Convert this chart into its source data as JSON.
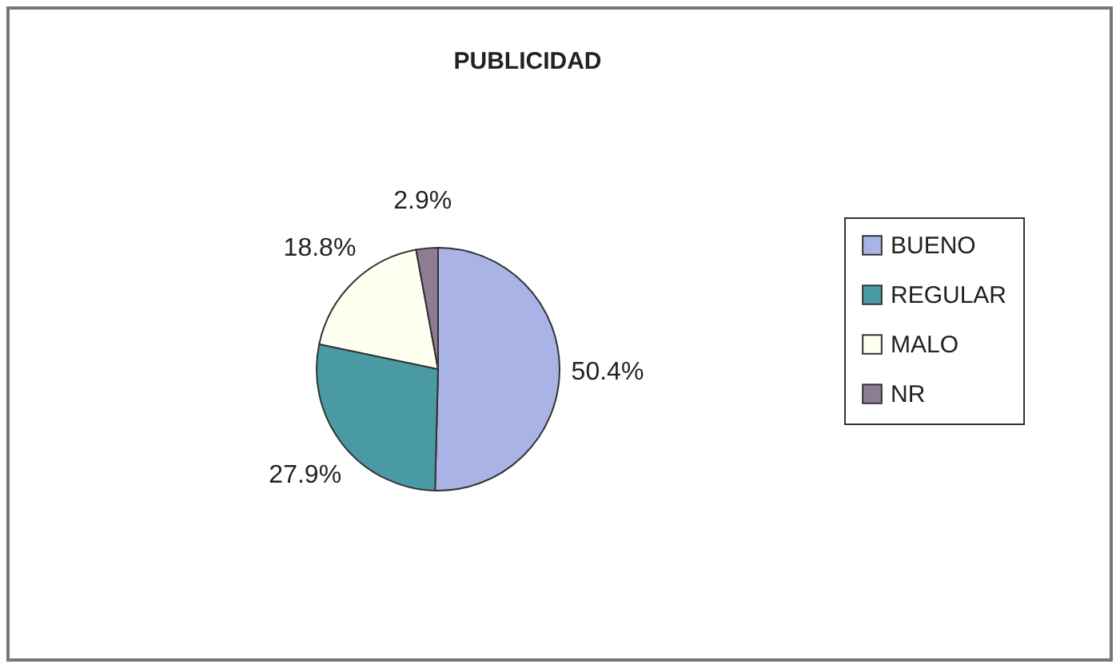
{
  "chart_data": {
    "type": "pie",
    "title": "PUBLICIDAD",
    "categories": [
      "BUENO",
      "REGULAR",
      "MALO",
      "NR"
    ],
    "values": [
      50.4,
      27.9,
      18.8,
      2.9
    ],
    "colors": [
      "#a9b3e6",
      "#4a9aa6",
      "#fffff2",
      "#8e7c95"
    ],
    "value_labels": [
      "50.4%",
      "27.9%",
      "18.8%",
      "2.9%"
    ],
    "legend": "right"
  }
}
